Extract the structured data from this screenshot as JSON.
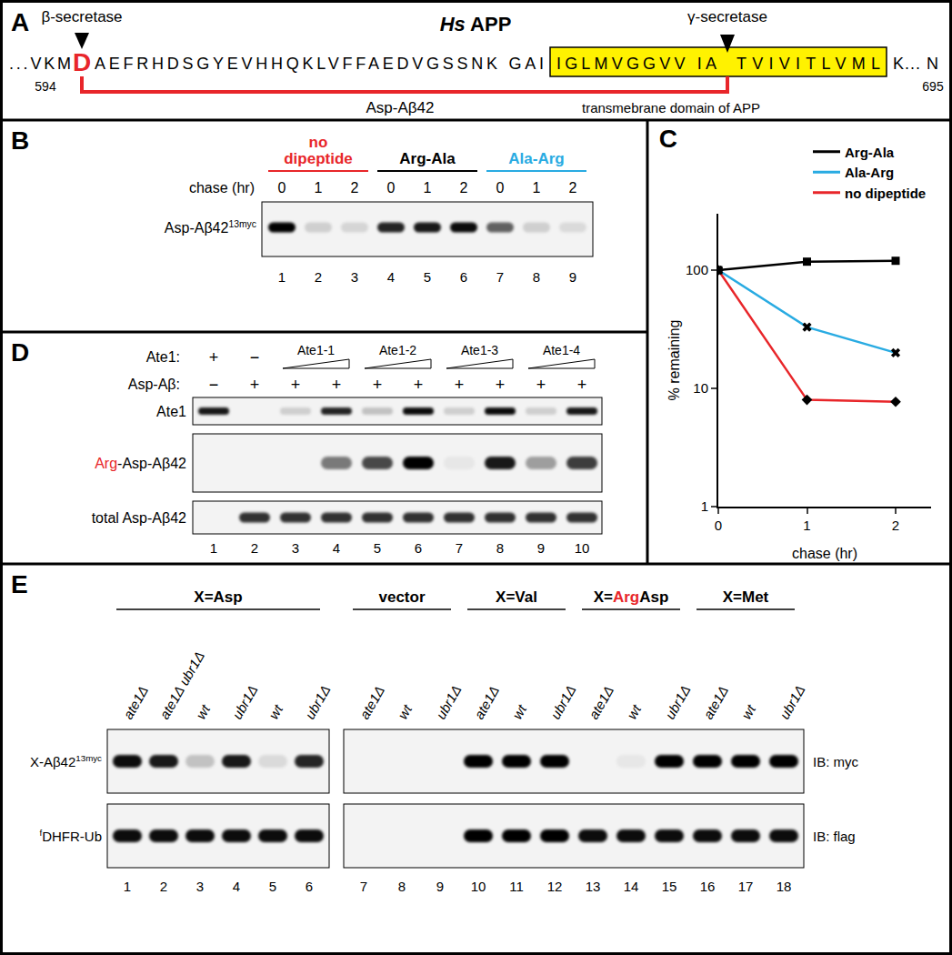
{
  "panel_A": {
    "label": "A",
    "title": [
      {
        "text": "Hs",
        "italic": true
      },
      {
        "text": " APP"
      }
    ],
    "beta_secretase": "β-secretase",
    "gamma_secretase": "γ-secretase",
    "sequence_prefix": "...VKM",
    "cleaved_residue": [
      {
        "text": "D",
        "color": "#e8262a"
      }
    ],
    "sequence": "AEFRHDSGYEVHHQKLVFFAEDVGSSNK GAI",
    "tm_domain_before_cut": "IGLMVGGVV IA",
    "tm_domain_after_cut": "TVIVITLVML",
    "sequence_suffix": "K... N",
    "tm_domain_color": "#fff200",
    "start_residue": 594,
    "end_residue": 695,
    "fragment": "Asp-Aβ42",
    "fragment_color": "#e8262a",
    "tm_domain": "transmebrane domain of APP"
  },
  "panel_B": {
    "label": "B",
    "groups": [
      {
        "name_lines": [
          "no",
          "dipeptide"
        ],
        "color": "#e8262a",
        "lanes": [
          1,
          2,
          3
        ]
      },
      {
        "name_lines": [
          "Arg-Ala"
        ],
        "color": "#000000",
        "lanes": [
          4,
          5,
          6
        ]
      },
      {
        "name_lines": [
          "Ala-Arg"
        ],
        "color": "#29abe2",
        "lanes": [
          7,
          8,
          9
        ]
      }
    ],
    "chase_label": "chase (hr)",
    "chase": [
      0,
      1,
      2,
      0,
      1,
      2,
      0,
      1,
      2
    ],
    "row": {
      "name": [
        {
          "text": "Asp-Aβ42"
        },
        {
          "text": "13myc",
          "sup": true
        }
      ],
      "band_intensity": [
        1.0,
        0.15,
        0.12,
        0.85,
        0.9,
        0.95,
        0.6,
        0.15,
        0.1
      ]
    },
    "lanes": [
      1,
      2,
      3,
      4,
      5,
      6,
      7,
      8,
      9
    ]
  },
  "chart_data": {
    "type": "line",
    "title": "C",
    "x": [
      0,
      1,
      2
    ],
    "series": [
      {
        "name": "Arg-Ala",
        "color": "#000000",
        "marker": "square",
        "line_style": "solid",
        "values": [
          100,
          118,
          120
        ]
      },
      {
        "name": "Ala-Arg",
        "color": "#29abe2",
        "marker": "x",
        "line_style": "solid",
        "values": [
          100,
          33,
          20
        ]
      },
      {
        "name": "no dipeptide",
        "color": "#e8262a",
        "marker": "diamond",
        "line_style": "solid",
        "values": [
          100,
          8,
          7.7
        ]
      }
    ],
    "x_label": "chase (hr)",
    "y_label": "% remaining",
    "xlim": [
      0,
      2.4
    ],
    "xticks": [
      0,
      1,
      2
    ],
    "ylim": [
      1,
      300
    ],
    "yticks": [
      1,
      10,
      100
    ],
    "log": "y",
    "grid": false,
    "legend": "upper right"
  },
  "panel_D": {
    "label": "D",
    "ate1_row": {
      "label": "Ate1:",
      "entries": [
        {
          "text": "+",
          "lanes": [
            1
          ]
        },
        {
          "text": "−",
          "lanes": [
            2
          ]
        },
        {
          "text": "Ate1-1",
          "lanes": [
            3,
            4
          ],
          "wedge": true
        },
        {
          "text": "Ate1-2",
          "lanes": [
            5,
            6
          ],
          "wedge": true
        },
        {
          "text": "Ate1-3",
          "lanes": [
            7,
            8
          ],
          "wedge": true
        },
        {
          "text": "Ate1-4",
          "lanes": [
            9,
            10
          ],
          "wedge": true
        }
      ]
    },
    "substrate_row": {
      "label": "Asp-Aβ:",
      "values": [
        "−",
        "+",
        "+",
        "+",
        "+",
        "+",
        "+",
        "+",
        "+",
        "+"
      ]
    },
    "rows": [
      {
        "name": [
          {
            "text": "Ate1"
          }
        ],
        "band_intensity": [
          0.9,
          0,
          0.15,
          0.85,
          0.2,
          0.95,
          0.15,
          0.95,
          0.15,
          0.9
        ]
      },
      {
        "name": [
          {
            "text": "Arg",
            "color": "#e8262a"
          },
          {
            "text": "-Asp-Aβ42"
          }
        ],
        "band_intensity": [
          0,
          0,
          0,
          0.5,
          0.7,
          1.0,
          0.05,
          0.9,
          0.35,
          0.75
        ]
      },
      {
        "name": [
          {
            "text": "total Asp-Aβ42"
          }
        ],
        "band_intensity": [
          0,
          0.8,
          0.8,
          0.8,
          0.8,
          0.8,
          0.8,
          0.8,
          0.8,
          0.8
        ]
      }
    ],
    "lanes": [
      1,
      2,
      3,
      4,
      5,
      6,
      7,
      8,
      9,
      10
    ]
  },
  "panel_E": {
    "label": "E",
    "blots": [
      {
        "lanes": [
          1,
          2,
          3,
          4,
          5,
          6
        ]
      },
      {
        "lanes": [
          7,
          8,
          9,
          10,
          11,
          12,
          13,
          14,
          15,
          16,
          17,
          18
        ]
      }
    ],
    "groups": [
      {
        "name": [
          {
            "text": "X="
          },
          {
            "text": "Asp"
          }
        ],
        "lanes": [
          1,
          2,
          3,
          4,
          5,
          6
        ]
      },
      {
        "name": [
          {
            "text": "vector"
          }
        ],
        "lanes": [
          7,
          8,
          9
        ]
      },
      {
        "name": [
          {
            "text": "X="
          },
          {
            "text": "Val"
          }
        ],
        "lanes": [
          10,
          11,
          12
        ]
      },
      {
        "name": [
          {
            "text": "X="
          },
          {
            "text": "Arg",
            "color": "#e8262a"
          },
          {
            "text": "Asp"
          }
        ],
        "lanes": [
          13,
          14,
          15
        ]
      },
      {
        "name": [
          {
            "text": "X="
          },
          {
            "text": "Met"
          }
        ],
        "lanes": [
          16,
          17,
          18
        ]
      }
    ],
    "genotypes": [
      "ate1Δ",
      "ate1Δ ubr1Δ",
      "wt",
      "ubr1Δ",
      "wt",
      "ubr1Δ",
      "ate1Δ",
      "wt",
      "ubr1Δ",
      "ate1Δ",
      "wt",
      "ubr1Δ",
      "ate1Δ",
      "wt",
      "ubr1Δ",
      "ate1Δ",
      "wt",
      "ubr1Δ"
    ],
    "rows": [
      {
        "name": [
          {
            "text": "X-Aβ42"
          },
          {
            "text": "13myc",
            "sup": true
          }
        ],
        "antibody": "IB: myc",
        "band_intensity": [
          0.95,
          0.9,
          0.2,
          0.9,
          0.1,
          0.85,
          0,
          0,
          0,
          1.0,
          1.0,
          1.0,
          0,
          0.05,
          1.0,
          1.0,
          1.0,
          1.0
        ]
      },
      {
        "name": [
          {
            "text": "f",
            "sup": true
          },
          {
            "text": "DHFR-Ub"
          }
        ],
        "antibody": "IB: flag",
        "band_intensity": [
          0.95,
          0.95,
          0.95,
          0.95,
          0.95,
          0.95,
          0,
          0,
          0,
          1.0,
          1.0,
          1.0,
          0.95,
          0.95,
          0.95,
          0.95,
          0.95,
          0.95
        ]
      }
    ],
    "lanes": [
      1,
      2,
      3,
      4,
      5,
      6,
      7,
      8,
      9,
      10,
      11,
      12,
      13,
      14,
      15,
      16,
      17,
      18
    ]
  }
}
